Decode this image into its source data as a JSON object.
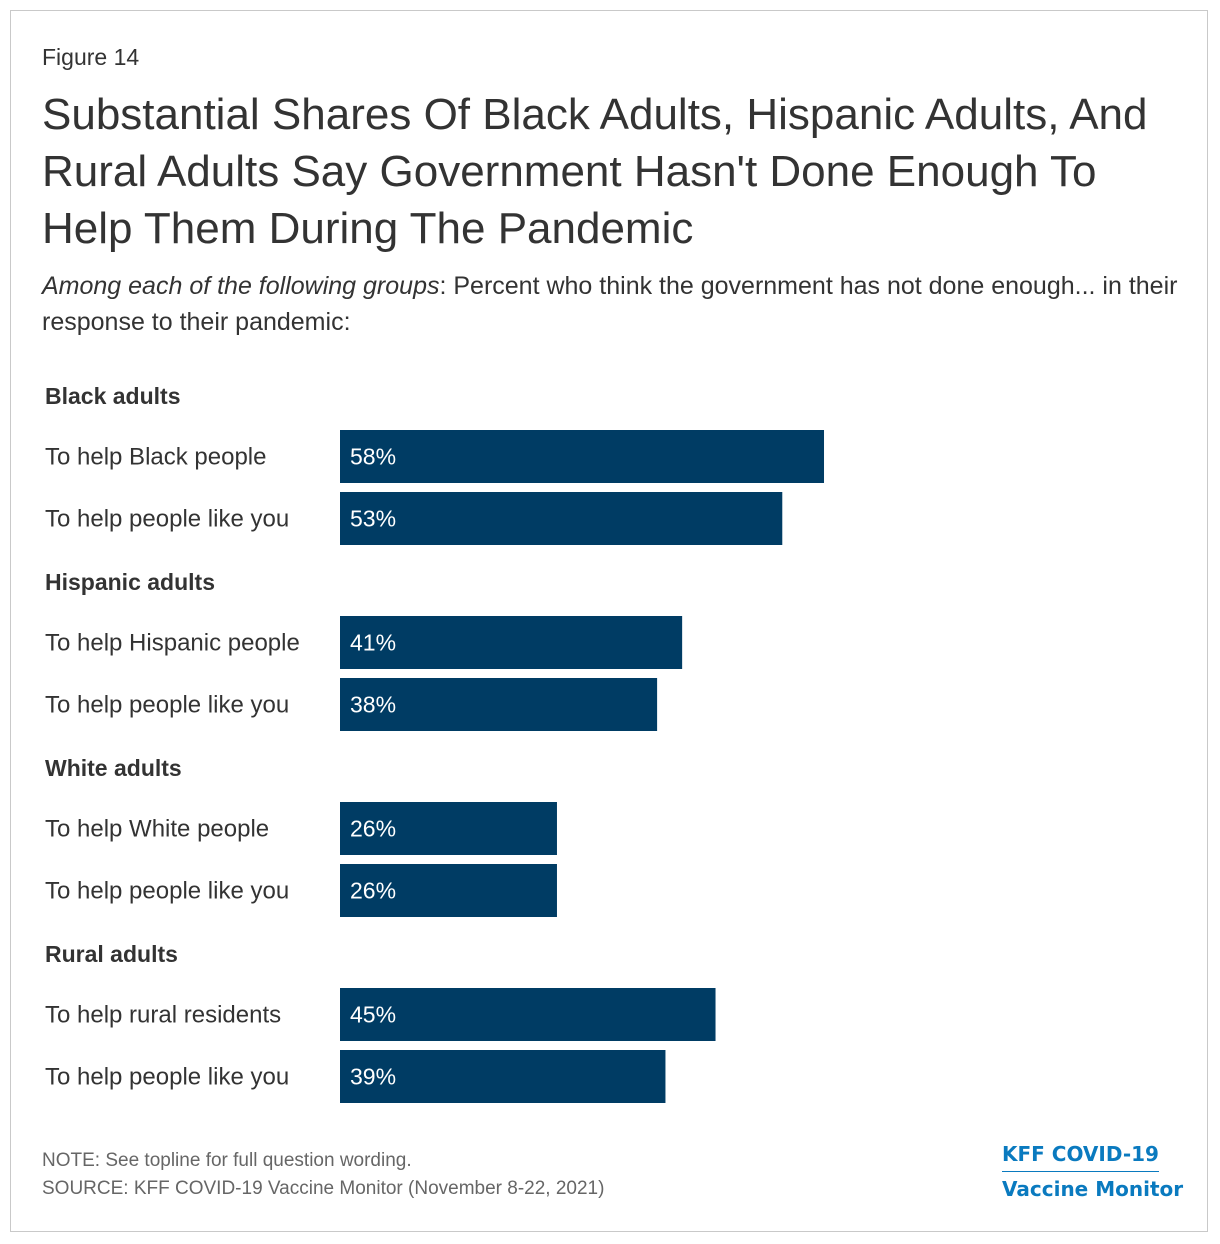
{
  "figure_label": "Figure 14",
  "title": "Substantial Shares Of Black Adults, Hispanic Adults, And Rural Adults Say Government Hasn't Done Enough To Help Them During The Pandemic",
  "subtitle_lead": "Among each of the following groups",
  "subtitle_rest": ": Percent who think the government has not done enough... in their response to their pandemic:",
  "bar_color": "#003c64",
  "chart_data": {
    "type": "bar",
    "orientation": "horizontal",
    "unit": "%",
    "groups": [
      {
        "name": "Black adults",
        "rows": [
          {
            "label": "To help Black people",
            "value": 58
          },
          {
            "label": "To help people like you",
            "value": 53
          }
        ]
      },
      {
        "name": "Hispanic adults",
        "rows": [
          {
            "label": "To help Hispanic people",
            "value": 41
          },
          {
            "label": "To help people like you",
            "value": 38
          }
        ]
      },
      {
        "name": "White adults",
        "rows": [
          {
            "label": "To help White people",
            "value": 26
          },
          {
            "label": "To help people like you",
            "value": 26
          }
        ]
      },
      {
        "name": "Rural adults",
        "rows": [
          {
            "label": "To help rural residents",
            "value": 45
          },
          {
            "label": "To help people like you",
            "value": 39
          }
        ]
      }
    ]
  },
  "note": "NOTE: See topline for full question wording.",
  "source": "SOURCE: KFF COVID-19 Vaccine Monitor (November 8-22, 2021)",
  "logo": {
    "line1": "KFF COVID-19",
    "line2": "Vaccine Monitor"
  }
}
